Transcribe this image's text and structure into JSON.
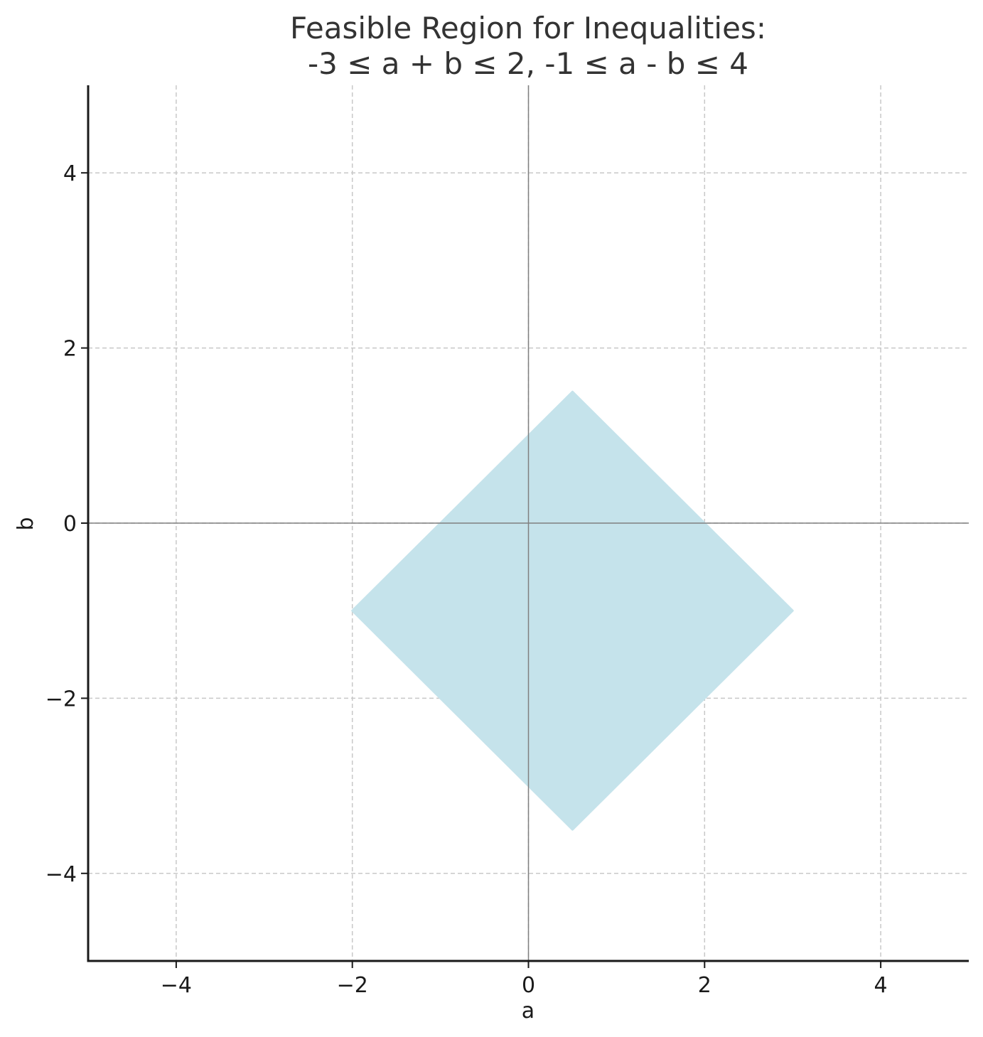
{
  "chart_data": {
    "type": "area",
    "title": "Feasible Region for Inequalities:",
    "subtitle": "-3 ≤ a + b ≤ 2, -1 ≤ a - b ≤ 4",
    "xlabel": "a",
    "ylabel": "b",
    "xlim": [
      -5,
      5
    ],
    "ylim": [
      -5,
      5
    ],
    "x_ticks": [
      -4,
      -2,
      0,
      2,
      4
    ],
    "y_ticks": [
      -4,
      -2,
      0,
      2,
      4
    ],
    "x_tick_labels": [
      "−4",
      "−2",
      "0",
      "2",
      "4"
    ],
    "y_tick_labels": [
      "−4",
      "−2",
      "0",
      "2",
      "4"
    ],
    "grid": true,
    "region": {
      "vertices": [
        {
          "a": 0.5,
          "b": 1.5
        },
        {
          "a": 3.0,
          "b": -1.0
        },
        {
          "a": 0.5,
          "b": -3.5
        },
        {
          "a": -2.0,
          "b": -1.0
        }
      ],
      "color": "#c5e3eb"
    },
    "colors": {
      "grid": "#c8c8c8",
      "zero_lines": "#808080",
      "axes": "#1a1a1a"
    }
  }
}
